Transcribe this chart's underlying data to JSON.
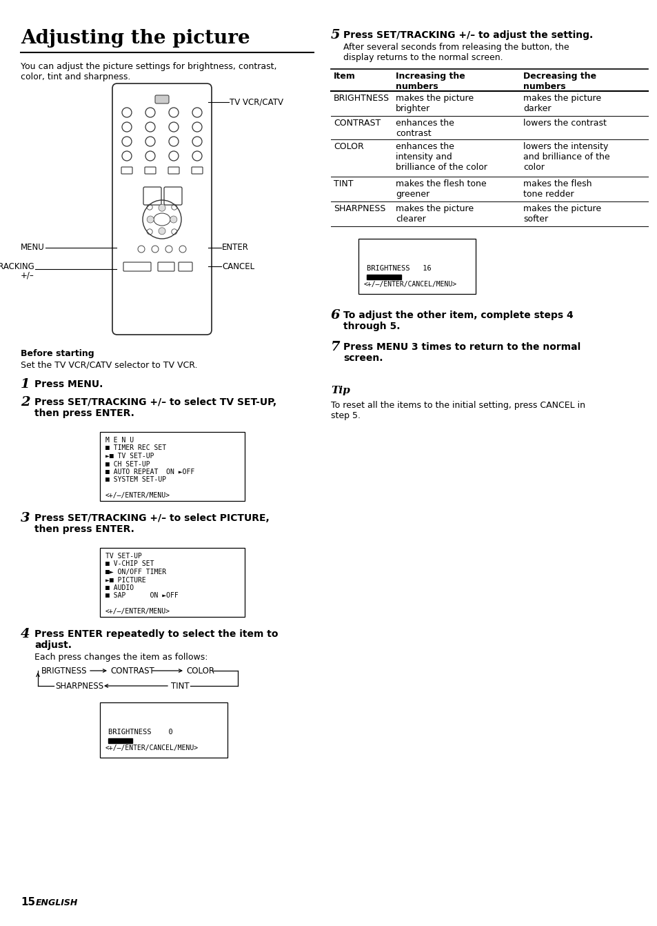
{
  "title": "Adjusting the picture",
  "bg_color": "#ffffff",
  "page_number": "15",
  "page_number_label": "ENGLISH",
  "intro_text": "You can adjust the picture settings for brightness, contrast,\ncolor, tint and sharpness.",
  "before_starting_bold": "Before starting",
  "before_starting_text": "Set the TV VCR/CATV selector to TV VCR.",
  "step1_num": "1",
  "step1_text": "Press MENU.",
  "step2_num": "2",
  "step2_text": "Press SET/TRACKING +/– to select TV SET-UP,\nthen press ENTER.",
  "step3_num": "3",
  "step3_text": "Press SET/TRACKING +/– to select PICTURE,\nthen press ENTER.",
  "step4_num": "4",
  "step4_text": "Press ENTER repeatedly to select the item to\nadjust.",
  "step4_sub": "Each press changes the item as follows:",
  "step5_num": "5",
  "step5_text": "Press SET/TRACKING +/– to adjust the setting.",
  "step5_sub": "After several seconds from releasing the button, the\ndisplay returns to the normal screen.",
  "step6_num": "6",
  "step6_text": "To adjust the other item, complete steps 4\nthrough 5.",
  "step7_num": "7",
  "step7_text": "Press MENU 3 times to return to the normal\nscreen.",
  "tip_title": "Tip",
  "tip_text": "To reset all the items to the initial setting, press CANCEL in\nstep 5.",
  "menu_box1_lines": [
    "M E N U",
    "■ TIMER REC SET",
    "►■ TV SET-UP",
    "■ CH SET-UP",
    "■ AUTO REPEAT  ON ►OFF",
    "■ SYSTEM SET-UP",
    "",
    "<+/–/ENTER/MENU>"
  ],
  "menu_box2_lines": [
    "TV SET-UP",
    "■ V-CHIP SET",
    "■► ON/OFF TIMER",
    "►■ PICTURE",
    "■ AUDIO",
    "■ SAP      ON ►OFF",
    "",
    "<+/–/ENTER/MENU>"
  ],
  "screen_box1_lines": [
    "BRIGHTNESS   16",
    "<+/–/ENTER/CANCEL/MENU>"
  ],
  "screen_box2_lines": [
    "BRIGHTNESS    0",
    "<+/–/ENTER/CANCEL/MENU>"
  ],
  "table_headers": [
    "Item",
    "Increasing the\nnumbers",
    "Decreasing the\nnumbers"
  ],
  "table_rows": [
    [
      "BRIGHTNESS",
      "makes the picture\nbrighter",
      "makes the picture\ndarker"
    ],
    [
      "CONTRAST",
      "enhances the\ncontrast",
      "lowers the contrast"
    ],
    [
      "COLOR",
      "enhances the\nintensity and\nbrilliance of the color",
      "lowers the intensity\nand brilliance of the\ncolor"
    ],
    [
      "TINT",
      "makes the flesh tone\ngreener",
      "makes the flesh\ntone redder"
    ],
    [
      "SHARPNESS",
      "makes the picture\nclearer",
      "makes the picture\nsofter"
    ]
  ],
  "remote_label_tvcr": "TV VCR/CATV",
  "remote_label_menu": "MENU",
  "remote_label_enter": "ENTER",
  "remote_label_set": "SET/TRACKING",
  "remote_label_set2": "+/–",
  "remote_label_cancel": "CANCEL"
}
